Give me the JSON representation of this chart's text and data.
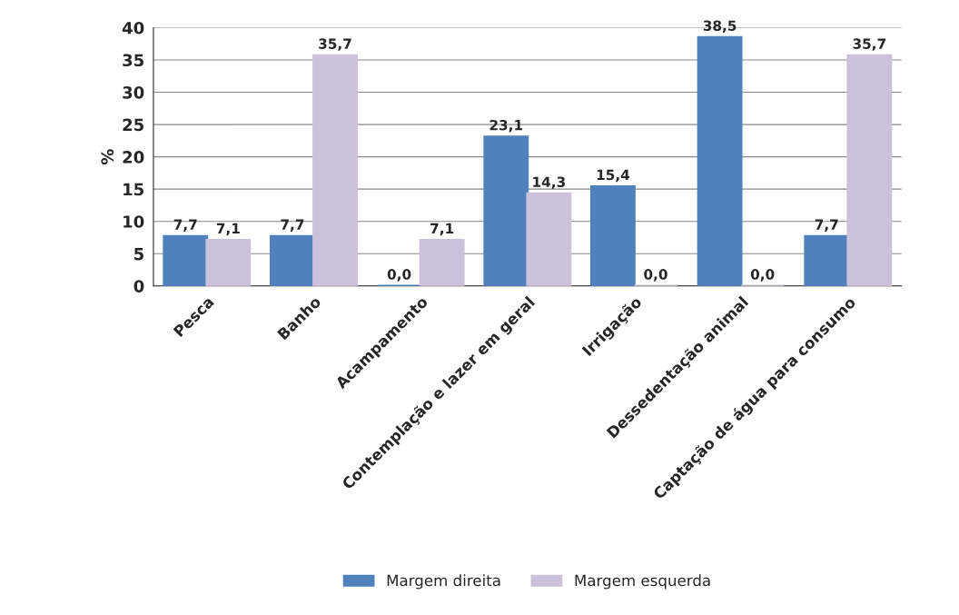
{
  "chart_data": {
    "type": "bar",
    "ylabel": "%",
    "categories": [
      "Pesca",
      "Banho",
      "Acampamento",
      "Contemplação e lazer em geral",
      "Irrigação",
      "Dessedentação animal",
      "Captação de água para consumo"
    ],
    "series": [
      {
        "name": "Margem direita",
        "color": "#4f81bd",
        "values": [
          7.7,
          7.7,
          0.0,
          23.1,
          15.4,
          38.5,
          7.7
        ],
        "value_labels": [
          "7,7",
          "7,7",
          "0,0",
          "23,1",
          "15,4",
          "38,5",
          "7,7"
        ]
      },
      {
        "name": "Margem esquerda",
        "color": "#ccc1da",
        "values": [
          7.1,
          35.7,
          7.1,
          14.3,
          0.0,
          0.0,
          35.7
        ],
        "value_labels": [
          "7,1",
          "35,7",
          "7,1",
          "14,3",
          "0,0",
          "0,0",
          "35,7"
        ]
      }
    ],
    "ylim": [
      0,
      40
    ],
    "yticks": [
      0,
      5,
      10,
      15,
      20,
      25,
      30,
      35,
      40
    ],
    "grid": "y",
    "legend": "bottom"
  }
}
